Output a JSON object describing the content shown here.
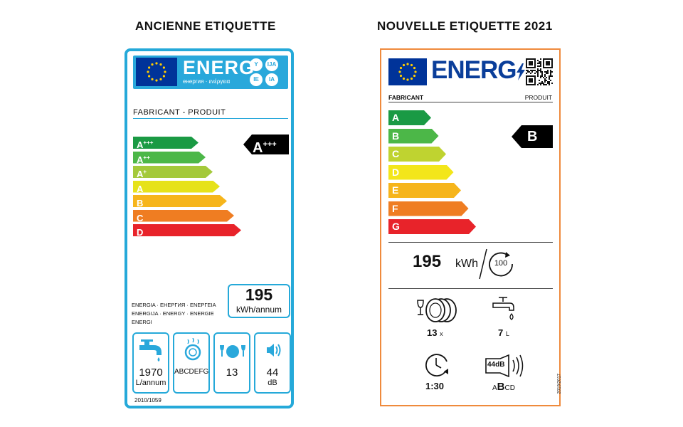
{
  "headings": {
    "old": "ANCIENNE ETIQUETTE",
    "new": "NOUVELLE ETIQUETTE 2021"
  },
  "old_label": {
    "energ": "ENERG",
    "energ_sub": "енергия · ενέργεια",
    "lang_badges": [
      "Y",
      "IJA",
      "IE",
      "IA"
    ],
    "fabricant_produit": "FABRICANT - PRODUIT",
    "classes": [
      {
        "letter": "A",
        "sup": "+++",
        "color": "#1a9a44"
      },
      {
        "letter": "A",
        "sup": "++",
        "color": "#4cb748"
      },
      {
        "letter": "A",
        "sup": "+",
        "color": "#a4c93a"
      },
      {
        "letter": "A",
        "sup": "",
        "color": "#e6e21a"
      },
      {
        "letter": "B",
        "sup": "",
        "color": "#f6b51b"
      },
      {
        "letter": "C",
        "sup": "",
        "color": "#ef7d22"
      },
      {
        "letter": "D",
        "sup": "",
        "color": "#e8232a"
      }
    ],
    "rating": {
      "letter": "A",
      "sup": "+++"
    },
    "energia_text": "ENERGIA · ЕНЕРГИЯ · ΕΝΕΡΓΕΙΑ ENERGIJA · ENERGY · ENERGIE ENERGI",
    "kwh_value": "195",
    "kwh_unit": "kWh/annum",
    "water_value": "1970",
    "water_unit": "L/annum",
    "drying_scale": "ABCDEFG",
    "capacity_value": "13",
    "noise_value": "44",
    "noise_unit": "dB",
    "regulation": "2010/1059"
  },
  "new_label": {
    "energ": "ENERG",
    "fabricant": "FABRICANT",
    "produit": "PRODUIT",
    "classes": [
      {
        "letter": "A",
        "color": "#1a9a44"
      },
      {
        "letter": "B",
        "color": "#4cb748"
      },
      {
        "letter": "C",
        "color": "#bfd330"
      },
      {
        "letter": "D",
        "color": "#f3e61a"
      },
      {
        "letter": "E",
        "color": "#f6b51b"
      },
      {
        "letter": "F",
        "color": "#ef7d22"
      },
      {
        "letter": "G",
        "color": "#e8232a"
      }
    ],
    "rating": "B",
    "kwh_value": "195",
    "kwh_unit": "kWh",
    "cycles": "100",
    "place_settings_value": "13",
    "place_settings_unit": "x",
    "water_value": "7",
    "water_unit": "L",
    "duration_value": "1:30",
    "noise_db": "44dB",
    "noise_scale_pre": "A",
    "noise_scale_active": "B",
    "noise_scale_post": "CD",
    "regulation": "2019/2017"
  },
  "colors": {
    "old_border": "#25a9d9",
    "new_border": "#ef8a3c",
    "eu_blue": "#003399",
    "energ_blue": "#0a3e9a"
  },
  "icons": [
    "eu-flag-icon",
    "faucet-icon",
    "dish-drying-icon",
    "dishes-icon",
    "speaker-icon",
    "qr-code-icon",
    "cycle-icon",
    "clock-icon",
    "water-tap-icon"
  ]
}
